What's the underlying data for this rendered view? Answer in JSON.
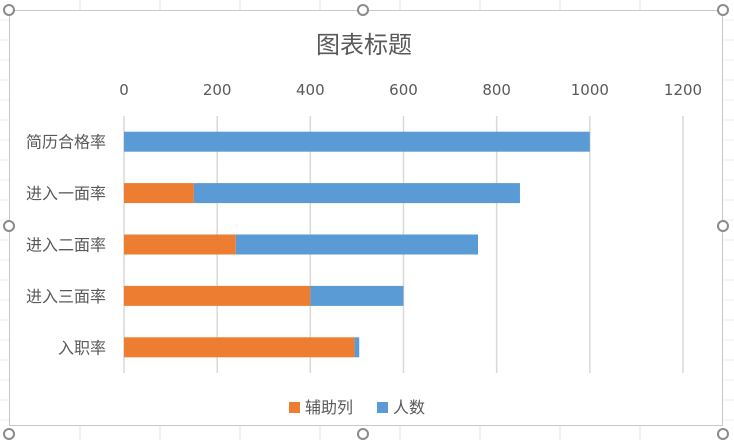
{
  "chart_data": {
    "type": "bar",
    "orientation": "horizontal",
    "stacked": true,
    "title": "图表标题",
    "categories": [
      "简历合格率",
      "进入一面率",
      "进入二面率",
      "进入三面率",
      "入职率"
    ],
    "series": [
      {
        "name": "辅助列",
        "color": "#ed7d31",
        "values": [
          0,
          150,
          240,
          400,
          495
        ]
      },
      {
        "name": "人数",
        "color": "#5b9bd5",
        "values": [
          1000,
          700,
          520,
          200,
          10
        ]
      }
    ],
    "xlim": [
      0,
      1200
    ],
    "xticks": [
      0,
      200,
      400,
      600,
      800,
      1000,
      1200
    ],
    "grid": true,
    "legend_position": "bottom",
    "axis_position": "top"
  }
}
